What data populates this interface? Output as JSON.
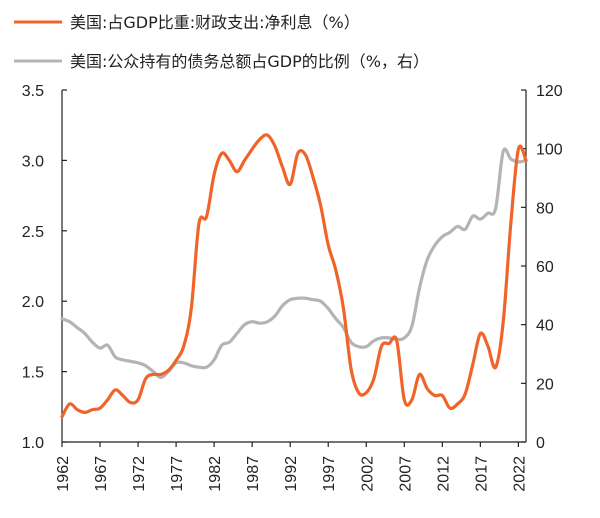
{
  "colors": {
    "interest_line": "#F0642A",
    "debt_line": "#B4B4B4",
    "axis": "#222222"
  },
  "chart_data": {
    "type": "line",
    "title": "",
    "xlabel": "",
    "ylabel": "",
    "legend": "top",
    "grid": false,
    "x_ticks": [
      "1962",
      "1967",
      "1972",
      "1977",
      "1982",
      "1987",
      "1992",
      "1997",
      "2002",
      "2007",
      "2012",
      "2017",
      "2022"
    ],
    "x_range": [
      1962,
      2023
    ],
    "y_left": {
      "range": [
        1.0,
        3.5
      ],
      "ticks": [
        "1.0",
        "1.5",
        "2.0",
        "2.5",
        "3.0",
        "3.5"
      ]
    },
    "y_right": {
      "range": [
        0,
        120
      ],
      "ticks": [
        "0",
        "20",
        "40",
        "60",
        "80",
        "100",
        "120"
      ]
    },
    "series": [
      {
        "name": "美国:占GDP比重:财政支出:净利息（%）",
        "axis": "left",
        "x": [
          1962,
          1963,
          1964,
          1965,
          1966,
          1967,
          1968,
          1969,
          1970,
          1971,
          1972,
          1973,
          1974,
          1975,
          1976,
          1977,
          1978,
          1979,
          1980,
          1981,
          1982,
          1983,
          1984,
          1985,
          1986,
          1987,
          1988,
          1989,
          1990,
          1991,
          1992,
          1993,
          1994,
          1995,
          1996,
          1997,
          1998,
          1999,
          2000,
          2001,
          2002,
          2003,
          2004,
          2005,
          2006,
          2007,
          2008,
          2009,
          2010,
          2011,
          2012,
          2013,
          2014,
          2015,
          2016,
          2017,
          2018,
          2019,
          2020,
          2021,
          2022,
          2023
        ],
        "values": [
          1.18,
          1.27,
          1.23,
          1.21,
          1.23,
          1.24,
          1.3,
          1.37,
          1.33,
          1.28,
          1.3,
          1.45,
          1.48,
          1.48,
          1.51,
          1.58,
          1.68,
          1.95,
          2.55,
          2.6,
          2.9,
          3.05,
          3.0,
          2.92,
          3.0,
          3.08,
          3.15,
          3.18,
          3.1,
          2.95,
          2.83,
          3.05,
          3.04,
          2.88,
          2.68,
          2.4,
          2.22,
          1.95,
          1.52,
          1.35,
          1.35,
          1.45,
          1.68,
          1.7,
          1.72,
          1.3,
          1.3,
          1.48,
          1.38,
          1.33,
          1.33,
          1.24,
          1.27,
          1.34,
          1.55,
          1.77,
          1.68,
          1.53,
          1.85,
          2.55,
          3.08,
          3.0
        ]
      },
      {
        "name": "美国:公众持有的债务总额占GDP的比例（%，右）",
        "axis": "right",
        "x": [
          1962,
          1963,
          1964,
          1965,
          1966,
          1967,
          1968,
          1969,
          1970,
          1971,
          1972,
          1973,
          1974,
          1975,
          1976,
          1977,
          1978,
          1979,
          1980,
          1981,
          1982,
          1983,
          1984,
          1985,
          1986,
          1987,
          1988,
          1989,
          1990,
          1991,
          1992,
          1993,
          1994,
          1995,
          1996,
          1997,
          1998,
          1999,
          2000,
          2001,
          2002,
          2003,
          2004,
          2005,
          2006,
          2007,
          2008,
          2009,
          2010,
          2011,
          2012,
          2013,
          2014,
          2015,
          2016,
          2017,
          2018,
          2019,
          2020,
          2021,
          2022,
          2023
        ],
        "values": [
          42,
          41,
          39,
          37,
          34,
          32,
          33,
          29,
          28,
          27.5,
          27,
          26,
          24,
          22,
          24,
          27,
          27,
          26,
          25.5,
          25.5,
          28,
          33,
          34,
          37,
          40,
          41,
          40.5,
          41,
          43,
          46.5,
          48.5,
          49,
          49,
          48.5,
          48,
          45.5,
          42,
          39,
          34,
          32.5,
          32.5,
          34.5,
          35.5,
          35.5,
          35,
          35.5,
          39.5,
          52.5,
          62,
          67,
          70,
          71.5,
          73.5,
          72.5,
          77,
          76,
          78,
          79.5,
          99,
          96.5,
          95.5,
          96
        ]
      }
    ]
  }
}
